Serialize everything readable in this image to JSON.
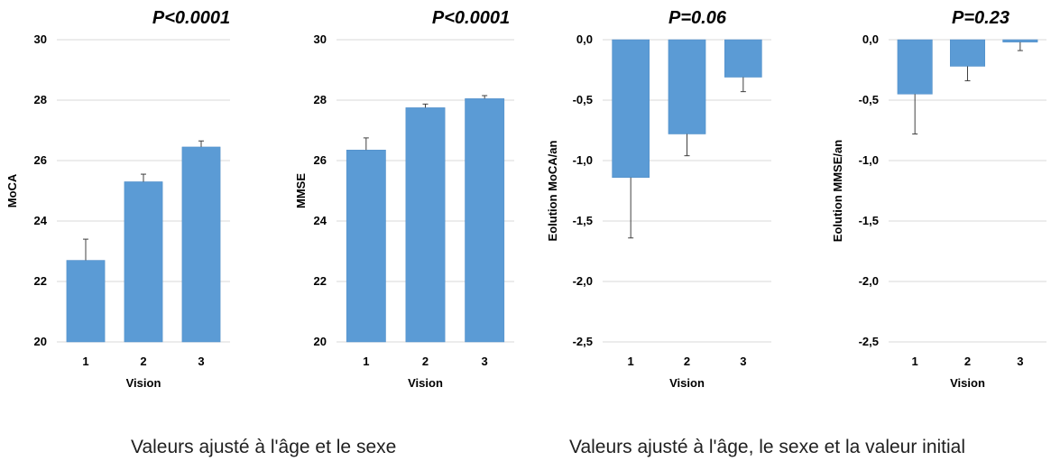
{
  "captions": {
    "left": "Valeurs ajusté à l'âge et le sexe",
    "right": "Valeurs ajusté à l'âge, le sexe et la valeur initial"
  },
  "colors": {
    "bar": "#5b9bd5",
    "bar_edge": "#4f8cc6",
    "grid": "#d9d9d9",
    "axis": "#bfbfbf",
    "text": "#000000"
  },
  "chart_data": [
    {
      "type": "bar",
      "title": "P<0.0001",
      "xlabel": "Vision",
      "ylabel": "MoCA",
      "categories": [
        "1",
        "2",
        "3"
      ],
      "values": [
        22.7,
        25.3,
        26.45
      ],
      "error_upper": [
        0.7,
        0.25,
        0.2
      ],
      "ylim": [
        20,
        30
      ],
      "yticks": [
        "20",
        "22",
        "24",
        "26",
        "28",
        "30"
      ],
      "grid": true
    },
    {
      "type": "bar",
      "title": "P<0.0001",
      "xlabel": "Vision",
      "ylabel": "MMSE",
      "categories": [
        "1",
        "2",
        "3"
      ],
      "values": [
        26.35,
        27.75,
        28.05
      ],
      "error_upper": [
        0.4,
        0.12,
        0.1
      ],
      "ylim": [
        20,
        30
      ],
      "yticks": [
        "20",
        "22",
        "24",
        "26",
        "28",
        "30"
      ],
      "grid": true
    },
    {
      "type": "bar",
      "title": "P=0.06",
      "xlabel": "Vision",
      "ylabel": "Eolution MoCA/an",
      "categories": [
        "1",
        "2",
        "3"
      ],
      "values": [
        -1.14,
        -0.78,
        -0.31
      ],
      "error_upper": [
        0.5,
        0.18,
        0.12
      ],
      "ylim": [
        -2.5,
        0
      ],
      "yticks": [
        "0,0",
        "-0,5",
        "-1,0",
        "-1,5",
        "-2,0",
        "-2,5"
      ],
      "grid": true
    },
    {
      "type": "bar",
      "title": "P=0.23",
      "xlabel": "Vision",
      "ylabel": "Eolution MMSE/an",
      "categories": [
        "1",
        "2",
        "3"
      ],
      "values": [
        -0.45,
        -0.22,
        -0.02
      ],
      "error_upper": [
        0.33,
        0.12,
        0.07
      ],
      "ylim": [
        -2.5,
        0
      ],
      "yticks": [
        "0,0",
        "-0,5",
        "-1,0",
        "-1,5",
        "-2,0",
        "-2,5"
      ],
      "grid": true
    }
  ]
}
